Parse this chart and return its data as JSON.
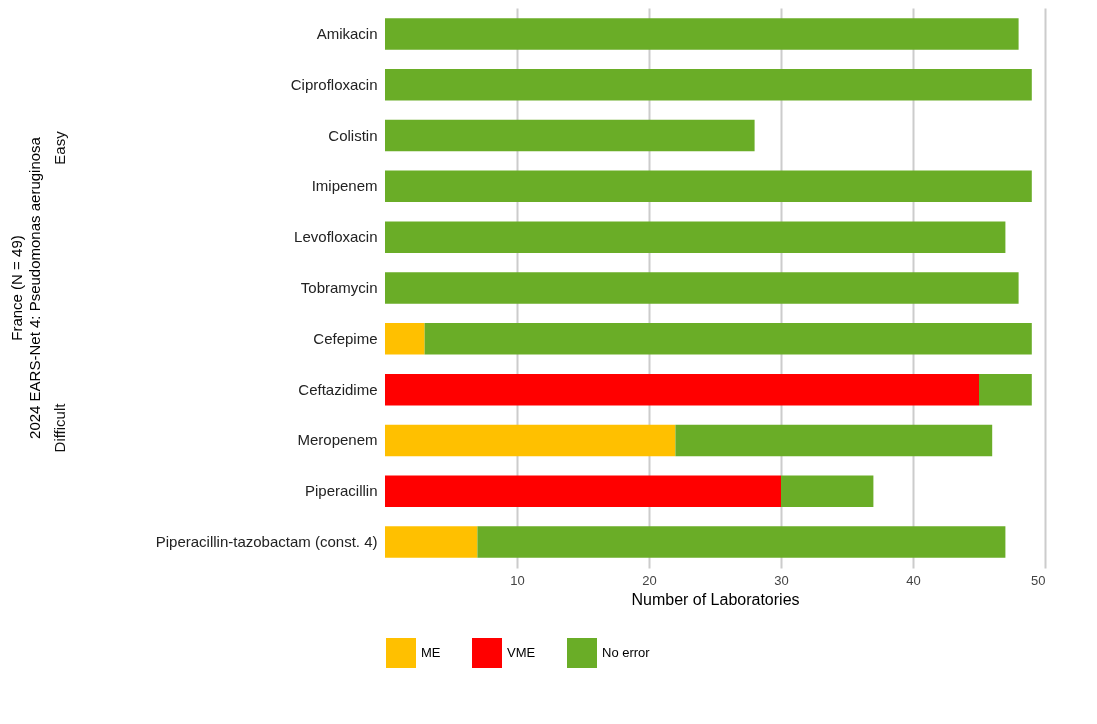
{
  "chart_data": {
    "type": "bar",
    "orientation": "horizontal",
    "stacked": true,
    "title": "France (N = 49)",
    "subtitle": "2024 EARS-Net 4: Pseudomonas aeruginosa",
    "xlabel": "Number of Laboratories",
    "categories": [
      "Amikacin",
      "Ciprofloxacin",
      "Colistin",
      "Imipenem",
      "Levofloxacin",
      "Tobramycin",
      "Cefepime",
      "Ceftazidime",
      "Meropenem",
      "Piperacillin",
      "Piperacillin-tazobactam (const. 4)"
    ],
    "series": [
      {
        "name": "ME",
        "color": "#ffc000",
        "values": [
          null,
          null,
          null,
          null,
          null,
          null,
          3,
          null,
          22,
          null,
          7
        ]
      },
      {
        "name": "VME",
        "color": "#ff0000",
        "values": [
          null,
          null,
          null,
          null,
          null,
          null,
          null,
          45,
          null,
          30,
          null
        ]
      },
      {
        "name": "No error",
        "color": "#6aad27",
        "values": [
          48,
          49,
          28,
          49,
          47,
          48,
          46,
          4,
          24,
          7,
          40
        ]
      }
    ],
    "annotations": [
      "Easy",
      "Difficult"
    ],
    "xlim": [
      0,
      50
    ],
    "xticks": [
      10,
      20,
      30,
      40,
      50
    ],
    "grid": "x",
    "legend": "bottom"
  }
}
